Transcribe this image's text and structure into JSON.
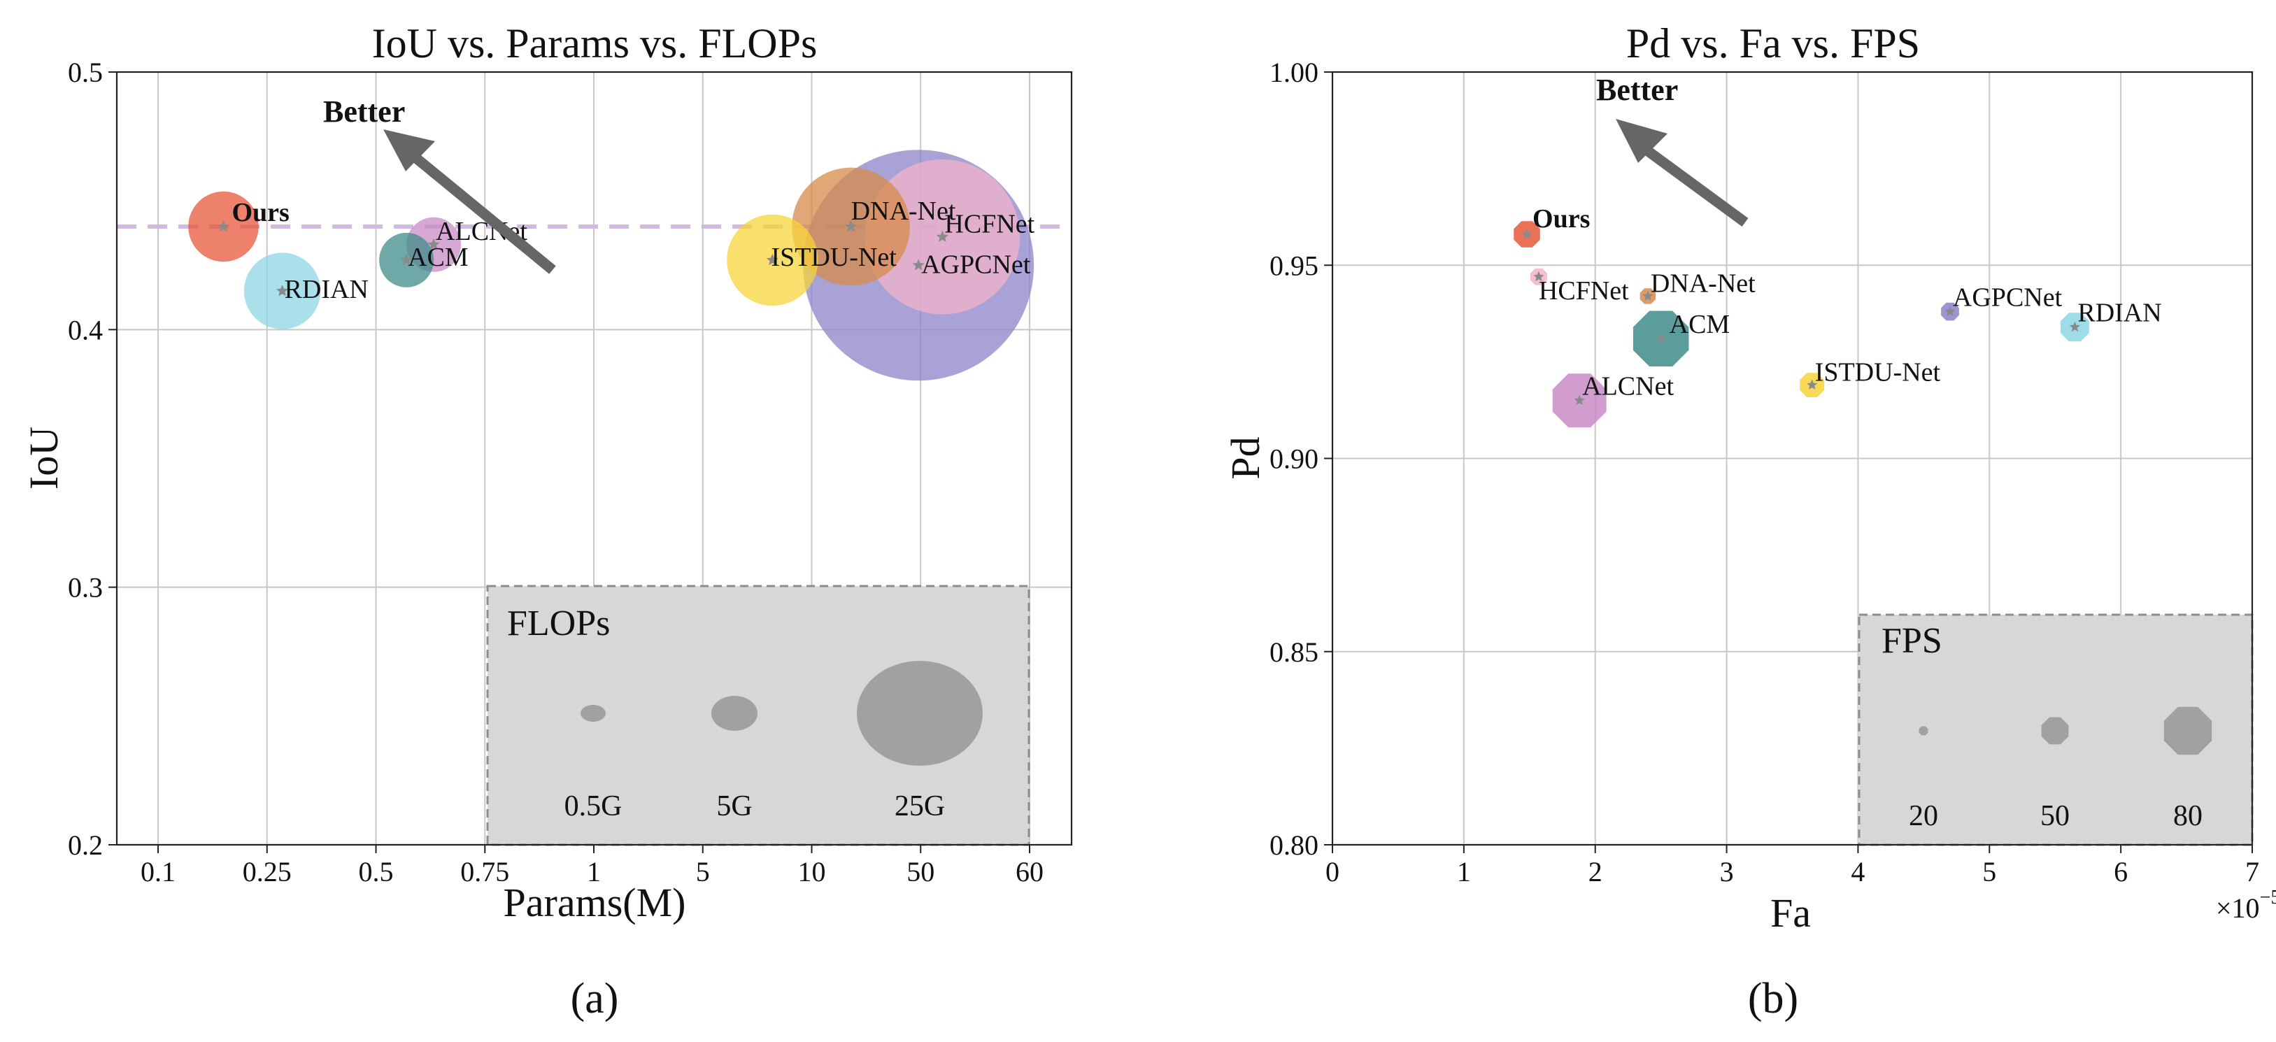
{
  "chart_data": [
    {
      "type": "scatter",
      "title": "IoU vs. Params vs. FLOPs",
      "xlabel": "Params(M)",
      "ylabel": "IoU",
      "x_scale": "categorical",
      "x_ticks": [
        "0.1",
        "0.25",
        "0.5",
        "0.75",
        "1",
        "5",
        "10",
        "50",
        "60"
      ],
      "ylim": [
        0.2,
        0.5
      ],
      "y_ticks": [
        "0.2",
        "0.3",
        "0.4",
        "0.5"
      ],
      "grid": true,
      "reference_line": {
        "y": 0.44,
        "style": "dashed",
        "color": "#d2b9e0"
      },
      "annotation": "Better",
      "points": [
        {
          "name": "Ours",
          "x_pos": 0.6,
          "y": 0.44,
          "flops_g": 1.3,
          "color": "#e8573b"
        },
        {
          "name": "ALCNet",
          "x_pos": 2.53,
          "y": 0.433,
          "flops_g": 0.4,
          "color": "#c98bc6"
        },
        {
          "name": "ACM",
          "x_pos": 2.28,
          "y": 0.427,
          "flops_g": 0.4,
          "color": "#3e8c8a"
        },
        {
          "name": "RDIAN",
          "x_pos": 1.14,
          "y": 0.415,
          "flops_g": 1.8,
          "color": "#8dd6e3"
        },
        {
          "name": "DNA-Net",
          "x_pos": 6.36,
          "y": 0.44,
          "flops_g": 7.2,
          "color": "#d78b4a"
        },
        {
          "name": "ISTDU-Net",
          "x_pos": 5.64,
          "y": 0.427,
          "flops_g": 3.3,
          "color": "#f7d43a"
        },
        {
          "name": "HCFNet",
          "x_pos": 7.2,
          "y": 0.436,
          "flops_g": 15.0,
          "color": "#f3b3c9"
        },
        {
          "name": "AGPCNet",
          "x_pos": 6.98,
          "y": 0.425,
          "flops_g": 40.0,
          "color": "#8b83ca"
        }
      ],
      "legend": {
        "title": "FLOPs",
        "entries": [
          "0.5G",
          "5G",
          "25G"
        ],
        "placement": "bottom-right"
      }
    },
    {
      "type": "scatter",
      "title": "Pd vs. Fa vs. FPS",
      "xlabel": "Fa",
      "ylabel": "Pd",
      "x_multiplier": "×10",
      "x_exponent": "−5",
      "xlim": [
        0,
        7
      ],
      "x_ticks": [
        "0",
        "1",
        "2",
        "3",
        "4",
        "5",
        "6",
        "7"
      ],
      "ylim": [
        0.8,
        1.0
      ],
      "y_ticks": [
        "0.80",
        "0.85",
        "0.90",
        "0.95",
        "1.00"
      ],
      "grid": true,
      "annotation": "Better",
      "points": [
        {
          "name": "Ours",
          "x": 1.48,
          "y": 0.958,
          "fps": 38,
          "color": "#e8573b"
        },
        {
          "name": "HCFNet",
          "x": 1.57,
          "y": 0.947,
          "fps": 22,
          "color": "#f3b3c9"
        },
        {
          "name": "DNA-Net",
          "x": 2.4,
          "y": 0.942,
          "fps": 20,
          "color": "#d78b4a"
        },
        {
          "name": "ACM",
          "x": 2.5,
          "y": 0.931,
          "fps": 88,
          "color": "#3e8c8a"
        },
        {
          "name": "ALCNet",
          "x": 1.88,
          "y": 0.915,
          "fps": 85,
          "color": "#c98bc6"
        },
        {
          "name": "AGPCNet",
          "x": 4.7,
          "y": 0.938,
          "fps": 24,
          "color": "#8b83ca"
        },
        {
          "name": "RDIAN",
          "x": 5.65,
          "y": 0.934,
          "fps": 42,
          "color": "#8dd6e3"
        },
        {
          "name": "ISTDU-Net",
          "x": 3.65,
          "y": 0.919,
          "fps": 35,
          "color": "#f7d43a"
        }
      ],
      "legend": {
        "title": "FPS",
        "entries": [
          "20",
          "50",
          "80"
        ],
        "placement": "bottom-right"
      }
    }
  ],
  "captions": {
    "a": "(a)",
    "b": "(b)"
  }
}
